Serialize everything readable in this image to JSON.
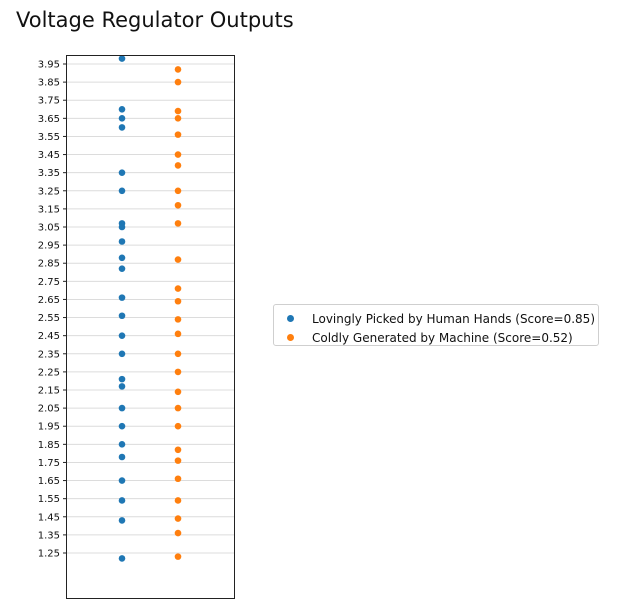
{
  "chart_data": {
    "type": "scatter",
    "title": "Voltage Regulator Outputs",
    "xlabel": "",
    "ylabel": "",
    "ylim": [
      1.0,
      4.0
    ],
    "yticks": [
      1.25,
      1.35,
      1.45,
      1.55,
      1.65,
      1.75,
      1.85,
      1.95,
      2.05,
      2.15,
      2.25,
      2.35,
      2.45,
      2.55,
      2.65,
      2.75,
      2.85,
      2.95,
      3.05,
      3.15,
      3.25,
      3.35,
      3.45,
      3.55,
      3.65,
      3.75,
      3.85,
      3.95
    ],
    "ytick_labels": [
      "1.25",
      "1.35",
      "1.45",
      "1.55",
      "1.65",
      "1.75",
      "1.85",
      "1.95",
      "2.05",
      "2.15",
      "2.25",
      "2.35",
      "2.45",
      "2.55",
      "2.65",
      "2.75",
      "2.85",
      "2.95",
      "3.05",
      "3.15",
      "3.25",
      "3.35",
      "3.45",
      "3.55",
      "3.65",
      "3.75",
      "3.85",
      "3.95"
    ],
    "grid": "horizontal",
    "legend_position": "right",
    "series": [
      {
        "name": "Lovingly Picked by Human Hands (Score=0.85)",
        "color": "#1f77b4",
        "x": 0,
        "values": [
          3.98,
          3.7,
          3.65,
          3.6,
          3.35,
          3.25,
          3.07,
          3.05,
          2.97,
          2.88,
          2.82,
          2.66,
          2.56,
          2.45,
          2.35,
          2.21,
          2.17,
          2.05,
          1.95,
          1.85,
          1.78,
          1.65,
          1.54,
          1.43,
          1.22
        ]
      },
      {
        "name": "Coldly Generated by Machine (Score=0.52)",
        "color": "#ff7f0e",
        "x": 1,
        "values": [
          3.92,
          3.85,
          3.69,
          3.65,
          3.56,
          3.45,
          3.39,
          3.25,
          3.17,
          3.07,
          2.87,
          2.71,
          2.64,
          2.54,
          2.46,
          2.35,
          2.25,
          2.14,
          2.05,
          1.95,
          1.82,
          1.76,
          1.66,
          1.54,
          1.44,
          1.36,
          1.23
        ]
      }
    ]
  }
}
